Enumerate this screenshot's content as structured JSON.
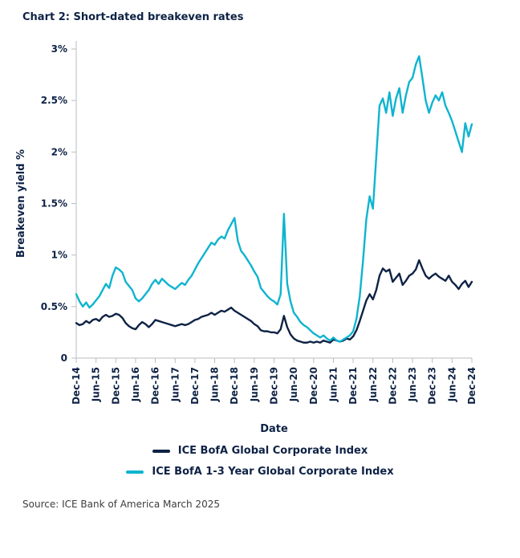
{
  "title": "Chart 2: Short-dated breakeven rates",
  "source": "Source: ICE Bank of America March 2025",
  "colors": {
    "navy": "#0e2245",
    "cyan": "#0fb4cf",
    "axis": "#b9bdc1",
    "text": "#0e2245"
  },
  "chart_data": {
    "type": "line",
    "title": "Chart 2: Short-dated breakeven rates",
    "xlabel": "Date",
    "ylabel": "Breakeven yield %",
    "ylim": [
      0,
      3
    ],
    "grid": false,
    "legend_position": "bottom",
    "axis_color": "#b9bdc1",
    "y_ticks": [
      {
        "v": 0,
        "label": "0"
      },
      {
        "v": 0.5,
        "label": "0.5%"
      },
      {
        "v": 1,
        "label": "1%"
      },
      {
        "v": 1.5,
        "label": "1.5%"
      },
      {
        "v": 2,
        "label": "2%"
      },
      {
        "v": 2.5,
        "label": "2.5%"
      },
      {
        "v": 3,
        "label": "3%"
      }
    ],
    "x_tick_labels": [
      "Dec-14",
      "Jun-15",
      "Dec-15",
      "Jun-16",
      "Dec-16",
      "Jun-17",
      "Dec-17",
      "Jun-18",
      "Dec-18",
      "Jun-19",
      "Dec-19",
      "Jun-20",
      "Dec-20",
      "Jun-21",
      "Dec-21",
      "Jun-22",
      "Dec-22",
      "Jun-23",
      "Dec-23",
      "Jun-24",
      "Dec-24"
    ],
    "x_tick_every": 6,
    "x_frequency": "monthly",
    "series": [
      {
        "name": "ICE BofA Global Corporate Index",
        "color": "#0e2245",
        "values": [
          0.34,
          0.32,
          0.33,
          0.36,
          0.34,
          0.37,
          0.38,
          0.36,
          0.4,
          0.42,
          0.4,
          0.41,
          0.43,
          0.42,
          0.39,
          0.34,
          0.31,
          0.29,
          0.28,
          0.32,
          0.35,
          0.33,
          0.3,
          0.33,
          0.37,
          0.36,
          0.35,
          0.34,
          0.33,
          0.32,
          0.31,
          0.32,
          0.33,
          0.32,
          0.33,
          0.35,
          0.37,
          0.38,
          0.4,
          0.41,
          0.42,
          0.44,
          0.42,
          0.44,
          0.46,
          0.45,
          0.47,
          0.49,
          0.46,
          0.44,
          0.42,
          0.4,
          0.38,
          0.36,
          0.33,
          0.31,
          0.27,
          0.26,
          0.26,
          0.25,
          0.25,
          0.24,
          0.28,
          0.41,
          0.3,
          0.23,
          0.19,
          0.17,
          0.16,
          0.15,
          0.15,
          0.16,
          0.15,
          0.16,
          0.15,
          0.17,
          0.16,
          0.15,
          0.18,
          0.17,
          0.16,
          0.17,
          0.19,
          0.18,
          0.21,
          0.27,
          0.36,
          0.46,
          0.56,
          0.62,
          0.57,
          0.66,
          0.8,
          0.87,
          0.84,
          0.86,
          0.74,
          0.78,
          0.82,
          0.71,
          0.75,
          0.8,
          0.82,
          0.86,
          0.95,
          0.87,
          0.8,
          0.77,
          0.8,
          0.82,
          0.79,
          0.77,
          0.75,
          0.8,
          0.74,
          0.71,
          0.67,
          0.72,
          0.75,
          0.69,
          0.74
        ]
      },
      {
        "name": "ICE BofA 1-3 Year Global Corporate Index",
        "color": "#0fb4cf",
        "values": [
          0.62,
          0.55,
          0.5,
          0.54,
          0.49,
          0.52,
          0.56,
          0.6,
          0.66,
          0.72,
          0.68,
          0.8,
          0.88,
          0.86,
          0.83,
          0.74,
          0.7,
          0.66,
          0.58,
          0.55,
          0.58,
          0.62,
          0.66,
          0.72,
          0.76,
          0.72,
          0.77,
          0.74,
          0.71,
          0.69,
          0.67,
          0.7,
          0.73,
          0.71,
          0.76,
          0.8,
          0.86,
          0.92,
          0.97,
          1.02,
          1.07,
          1.12,
          1.1,
          1.15,
          1.18,
          1.16,
          1.24,
          1.3,
          1.36,
          1.14,
          1.04,
          1.0,
          0.95,
          0.9,
          0.84,
          0.79,
          0.68,
          0.64,
          0.6,
          0.57,
          0.55,
          0.52,
          0.62,
          1.4,
          0.72,
          0.55,
          0.44,
          0.4,
          0.35,
          0.32,
          0.3,
          0.27,
          0.24,
          0.22,
          0.2,
          0.22,
          0.19,
          0.17,
          0.2,
          0.17,
          0.16,
          0.18,
          0.2,
          0.22,
          0.26,
          0.38,
          0.6,
          0.95,
          1.35,
          1.57,
          1.45,
          1.95,
          2.45,
          2.52,
          2.38,
          2.58,
          2.35,
          2.52,
          2.62,
          2.38,
          2.55,
          2.68,
          2.72,
          2.85,
          2.93,
          2.72,
          2.5,
          2.38,
          2.48,
          2.55,
          2.5,
          2.58,
          2.45,
          2.38,
          2.3,
          2.2,
          2.1,
          2.0,
          2.28,
          2.15,
          2.27
        ]
      }
    ]
  }
}
